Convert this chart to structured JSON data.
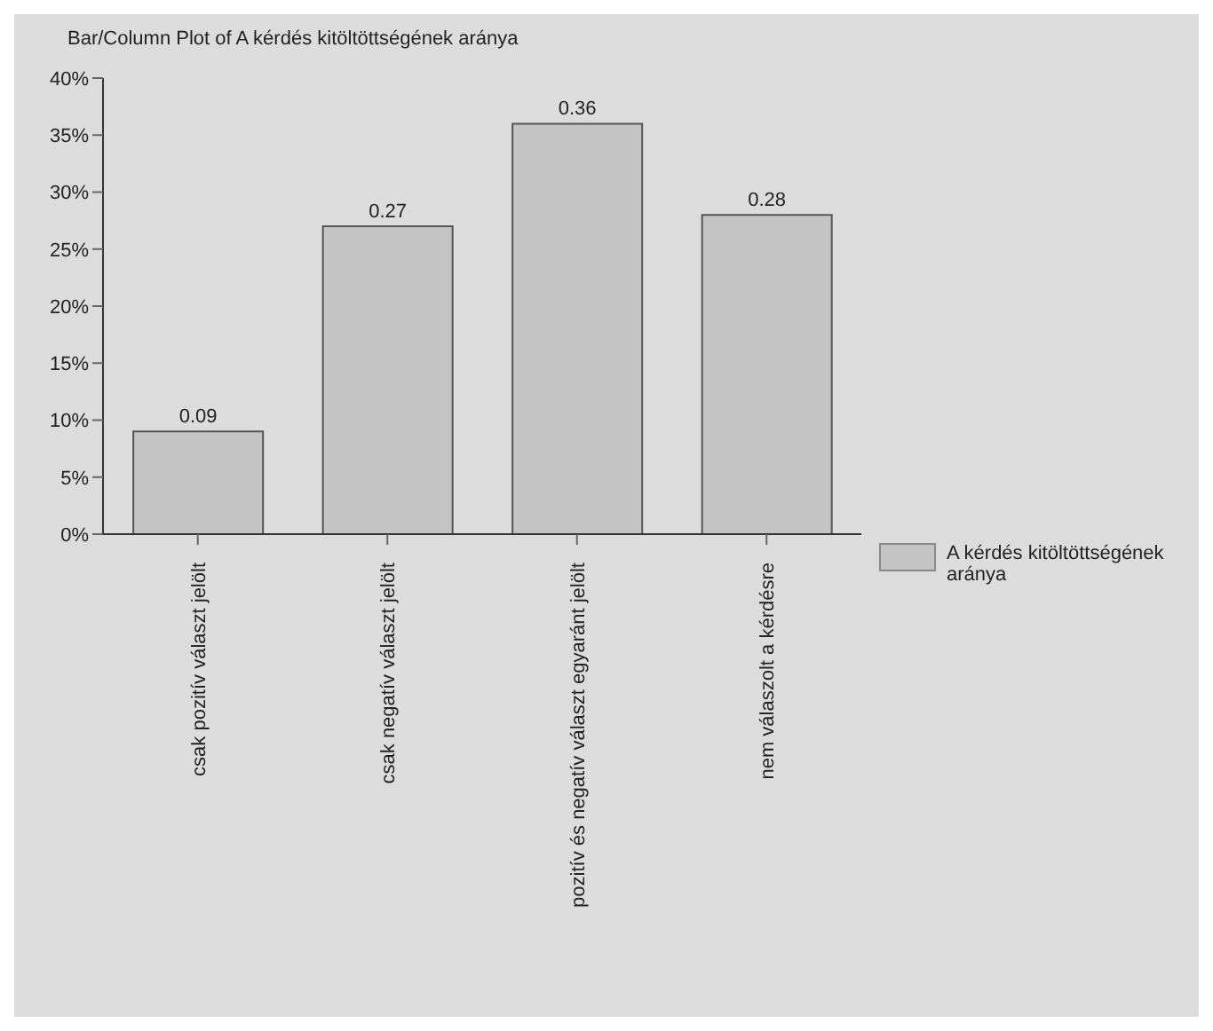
{
  "chart_data": {
    "type": "bar",
    "title": "Bar/Column Plot of A kérdés kitöltöttségének aránya",
    "categories": [
      "csak pozitív választ jelölt",
      "csak negatív választ jelölt",
      "pozitív és negatív választ egyaránt jelölt",
      "nem válaszolt a kérdésre"
    ],
    "series": [
      {
        "name": "A kérdés kitöltöttségének aránya",
        "color": "#c4c4c4",
        "values": [
          0.09,
          0.27,
          0.36,
          0.28
        ]
      }
    ],
    "ylim": [
      0,
      0.4
    ],
    "yticks": [
      {
        "value": 0,
        "label": "0%"
      },
      {
        "value": 0.05,
        "label": "5%"
      },
      {
        "value": 0.1,
        "label": "10%"
      },
      {
        "value": 0.15,
        "label": "15%"
      },
      {
        "value": 0.2,
        "label": "20%"
      },
      {
        "value": 0.25,
        "label": "25%"
      },
      {
        "value": 0.3,
        "label": "30%"
      },
      {
        "value": 0.35,
        "label": "35%"
      },
      {
        "value": 0.4,
        "label": "40%"
      }
    ],
    "data_labels": true,
    "legend": "right",
    "grid": false
  }
}
